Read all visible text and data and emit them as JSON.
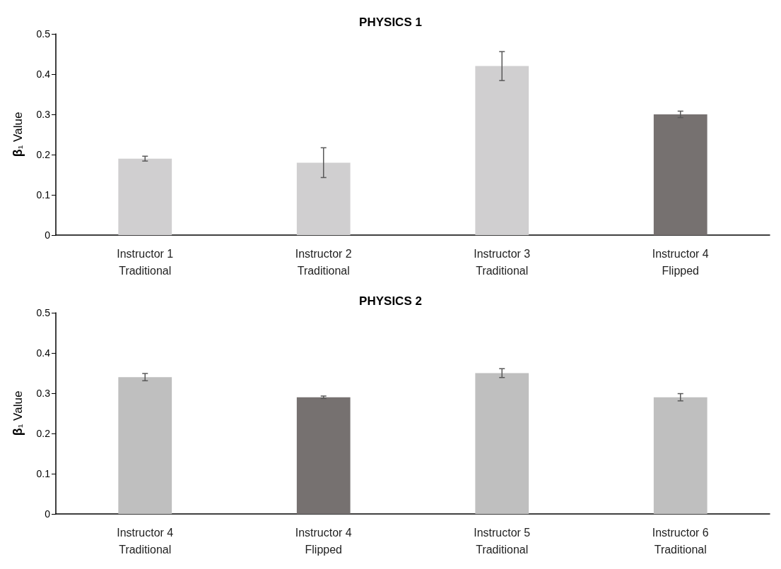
{
  "chart_data": [
    {
      "type": "bar",
      "title": "PHYSICS 1",
      "ylabel": "β₁ Value",
      "categories": [
        "Instructor 1\nTraditional",
        "Instructor 2\nTraditional",
        "Instructor 3\nTraditional",
        "Instructor 4\nFlipped"
      ],
      "values": [
        0.19,
        0.18,
        0.42,
        0.3
      ],
      "errors": [
        0.006,
        0.037,
        0.036,
        0.008
      ],
      "colors": [
        "#d0cfd0",
        "#d0cfd0",
        "#d0cfd0",
        "#767170"
      ],
      "ylim": [
        0,
        0.5
      ],
      "yticks": [
        0,
        0.1,
        0.2,
        0.3,
        0.4,
        0.5
      ],
      "grid": false
    },
    {
      "type": "bar",
      "title": "PHYSICS 2",
      "ylabel": "β₁ Value",
      "categories": [
        "Instructor 4\nTraditional",
        "Instructor 4\nFlipped",
        "Instructor 5\nTraditional",
        "Instructor 6\nTraditional"
      ],
      "values": [
        0.34,
        0.29,
        0.35,
        0.29
      ],
      "errors": [
        0.009,
        0.003,
        0.011,
        0.009
      ],
      "colors": [
        "#bfbfbf",
        "#767170",
        "#bfbfbf",
        "#bfbfbf"
      ],
      "ylim": [
        0,
        0.5
      ],
      "yticks": [
        0,
        0.1,
        0.2,
        0.3,
        0.4,
        0.5
      ],
      "grid": false
    }
  ]
}
